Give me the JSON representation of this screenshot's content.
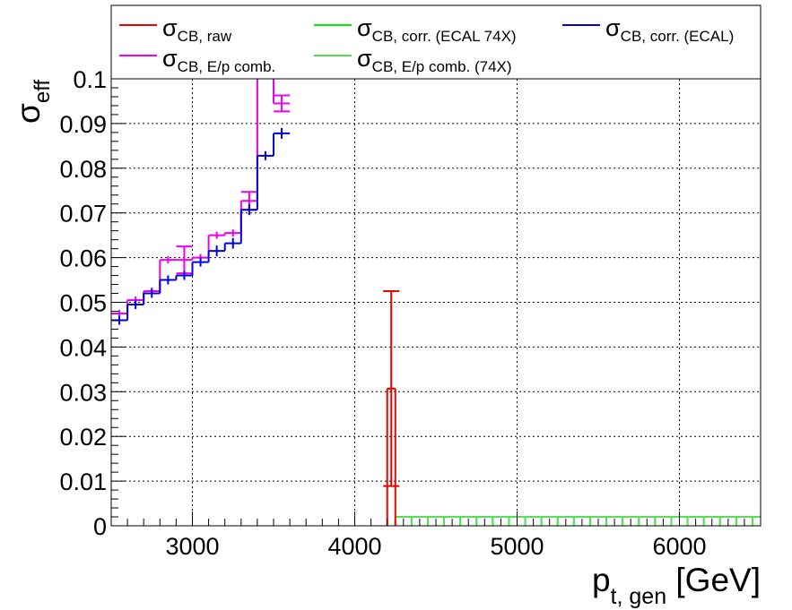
{
  "chart_data": {
    "type": "line",
    "title": "",
    "xlabel": {
      "main": "p",
      "sub": "t, gen",
      "suffix": " [GeV]"
    },
    "ylabel": {
      "main": "σ",
      "sub": "eff"
    },
    "xlim": [
      2500,
      6500
    ],
    "ylim": [
      0,
      0.1
    ],
    "grid": true,
    "legend_position": "top",
    "x_ticks": [
      3000,
      4000,
      5000,
      6000
    ],
    "x_tick_labels": [
      "3000",
      "4000",
      "5000",
      "6000"
    ],
    "y_ticks": [
      0,
      0.01,
      0.02,
      0.03,
      0.04,
      0.05,
      0.06,
      0.07,
      0.08,
      0.09,
      0.1
    ],
    "y_tick_labels": [
      "0",
      "0.01",
      "0.02",
      "0.03",
      "0.04",
      "0.05",
      "0.06",
      "0.07",
      "0.08",
      "0.09",
      "0.1"
    ],
    "series": [
      {
        "name": "σ_CB, raw",
        "legend": {
          "main": "σ",
          "sub": "CB, raw"
        },
        "color": "#ee0000",
        "kind": "step",
        "bins": [
          [
            4200,
            4250,
            0.0307,
            0.0218
          ]
        ]
      },
      {
        "name": "σ_CB, corr. (ECAL 74X)",
        "legend": {
          "main": "σ",
          "sub": "CB, corr. (ECAL 74X)"
        },
        "color": "#00ee00",
        "kind": "step",
        "bins": []
      },
      {
        "name": "σ_CB, corr. (ECAL)",
        "legend": {
          "main": "σ",
          "sub": "CB, corr. (ECAL)"
        },
        "color": "#0000dd",
        "kind": "step",
        "bins": [
          [
            2500,
            2600,
            0.046,
            0.001
          ],
          [
            2600,
            2700,
            0.0495,
            0.001
          ],
          [
            2700,
            2800,
            0.052,
            0.001
          ],
          [
            2800,
            2900,
            0.055,
            0.001
          ],
          [
            2900,
            3000,
            0.056,
            0.001
          ],
          [
            3000,
            3100,
            0.059,
            0.001
          ],
          [
            3100,
            3200,
            0.0615,
            0.0012
          ],
          [
            3200,
            3300,
            0.0632,
            0.0012
          ],
          [
            3300,
            3400,
            0.0707,
            0.0012
          ],
          [
            3400,
            3500,
            0.0828,
            0.001
          ],
          [
            3500,
            3600,
            0.0878,
            0.0012
          ]
        ]
      },
      {
        "name": "σ_CB, E/p comb.",
        "legend": {
          "main": "σ",
          "sub": "CB, E/p comb."
        },
        "color": "#ee00ee",
        "kind": "step",
        "bins": [
          [
            2500,
            2600,
            0.0475,
            0.0008
          ],
          [
            2600,
            2700,
            0.0505,
            0.0008
          ],
          [
            2700,
            2800,
            0.0525,
            0.0008
          ],
          [
            2800,
            2900,
            0.0595,
            0.0008
          ],
          [
            2900,
            3000,
            0.0595,
            0.003
          ],
          [
            3000,
            3100,
            0.06,
            0.0008
          ],
          [
            3100,
            3200,
            0.065,
            0.0008
          ],
          [
            3200,
            3300,
            0.0655,
            0.0008
          ],
          [
            3300,
            3400,
            0.0727,
            0.002
          ],
          [
            3400,
            3500,
            0.1035,
            0.001
          ],
          [
            3500,
            3600,
            0.0945,
            0.0018
          ]
        ]
      },
      {
        "name": "σ_CB, E/p comb. (74X)",
        "legend": {
          "main": "σ",
          "sub": "CB, E/p comb. (74X)"
        },
        "color": "#55dd55",
        "kind": "step",
        "bins": [
          [
            4250,
            4350,
            0.002,
            0
          ],
          [
            4350,
            4450,
            0.002,
            0
          ],
          [
            4450,
            4550,
            0.002,
            0
          ],
          [
            4550,
            4650,
            0.002,
            0
          ],
          [
            4650,
            4750,
            0.002,
            0
          ],
          [
            4750,
            4850,
            0.002,
            0
          ],
          [
            4850,
            4950,
            0.002,
            0
          ],
          [
            4950,
            5050,
            0.002,
            0
          ],
          [
            5050,
            5150,
            0.002,
            0
          ],
          [
            5150,
            5250,
            0.002,
            0
          ],
          [
            5250,
            5350,
            0.002,
            0
          ],
          [
            5350,
            5450,
            0.002,
            0
          ],
          [
            5450,
            5550,
            0.002,
            0
          ],
          [
            5550,
            5650,
            0.002,
            0
          ],
          [
            5650,
            5750,
            0.002,
            0
          ],
          [
            5750,
            5850,
            0.002,
            0
          ],
          [
            5850,
            5950,
            0.002,
            0
          ],
          [
            5950,
            6050,
            0.002,
            0
          ],
          [
            6050,
            6150,
            0.002,
            0
          ],
          [
            6150,
            6250,
            0.002,
            0
          ],
          [
            6250,
            6350,
            0.002,
            0
          ],
          [
            6350,
            6450,
            0.002,
            0
          ],
          [
            6450,
            6550,
            0.002,
            0
          ]
        ]
      }
    ]
  }
}
